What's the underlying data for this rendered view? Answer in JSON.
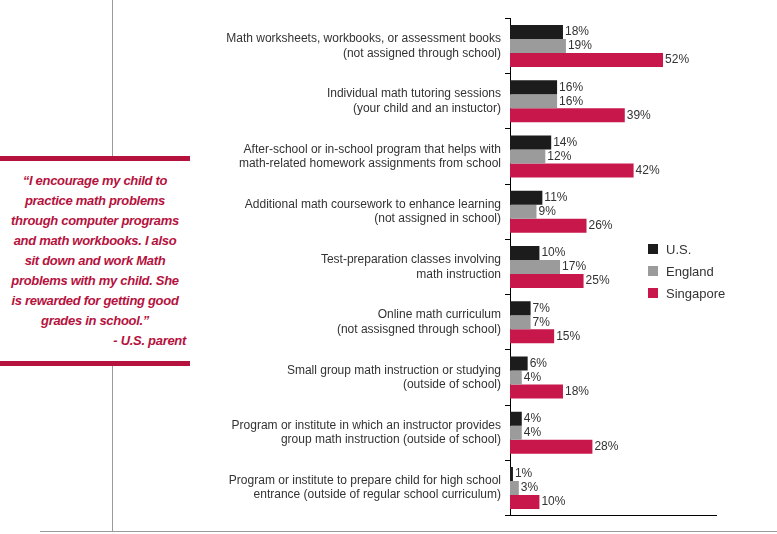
{
  "chart_data": {
    "type": "bar",
    "orientation": "horizontal",
    "categories": [
      [
        "Math worksheets, workbooks, or assessment books",
        "(not assigned through school)"
      ],
      [
        "Individual math tutoring sessions",
        "(your child and an instuctor)"
      ],
      [
        "After-school or in-school program that helps with",
        "math-related homework assignments from school"
      ],
      [
        "Additional math coursework to enhance learning",
        "(not assigned in school)"
      ],
      [
        "Test-preparation classes involving",
        "math instruction"
      ],
      [
        "Online math curriculum",
        "(not assisgned through school)"
      ],
      [
        "Small group math instruction or studying",
        "(outside of school)"
      ],
      [
        "Program or institute in which an instructor provides",
        "group math instruction (outside of school)"
      ],
      [
        "Program or institute to prepare child for high school",
        "entrance (outside of regular school curriculum)"
      ]
    ],
    "series": [
      {
        "name": "U.S.",
        "color": "#1c1c1c",
        "values": [
          18,
          16,
          14,
          11,
          10,
          7,
          6,
          4,
          1
        ],
        "value_labels": [
          "18%",
          "16%",
          "14%",
          "11%",
          "10%",
          "7%",
          "6%",
          "4%",
          "1%"
        ]
      },
      {
        "name": "England",
        "color": "#9b9b9b",
        "values": [
          19,
          16,
          12,
          9,
          17,
          7,
          4,
          4,
          3
        ],
        "value_labels": [
          "19%",
          "16%",
          "12%",
          "9%",
          "17%",
          "7%",
          "4%",
          "4%",
          "3%"
        ]
      },
      {
        "name": "Singapore",
        "color": "#c8174b",
        "values": [
          52,
          39,
          42,
          26,
          25,
          15,
          18,
          28,
          10
        ],
        "value_labels": [
          "52%",
          "39%",
          "42%",
          "26%",
          "25%",
          "15%",
          "18%",
          "28%",
          "10%"
        ]
      }
    ],
    "xlim": [
      0,
      70
    ],
    "grid": false,
    "data_labels": true,
    "tick_labels": "y",
    "legend": "right"
  },
  "quote": {
    "lines": [
      "“I encourage my child to",
      "practice math problems",
      "through computer programs",
      "and math workbooks. I also",
      "sit down and work Math",
      "problems with my child. She",
      "is rewarded for getting good",
      "grades in school.”"
    ],
    "attribution": "- U.S. parent"
  }
}
